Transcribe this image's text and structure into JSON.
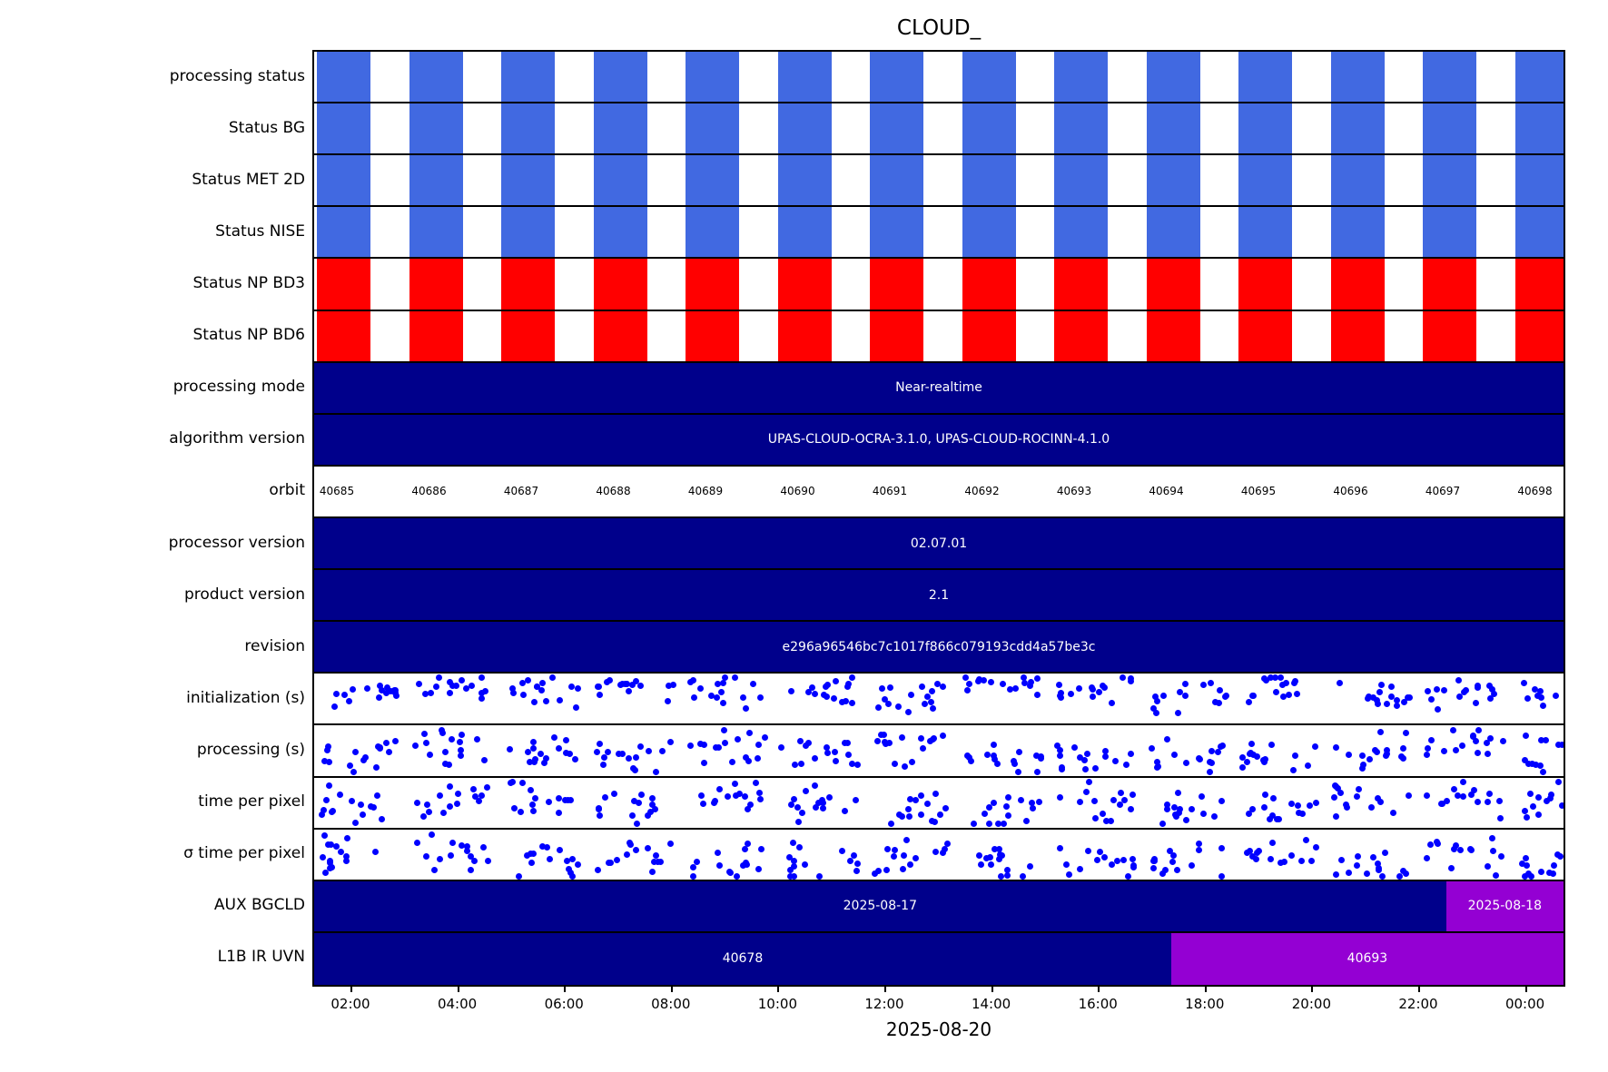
{
  "chart_data": {
    "type": "status-timeline",
    "title": "CLOUD_",
    "xlabel": "2025-08-20",
    "x_ticks": [
      "02:00",
      "04:00",
      "06:00",
      "08:00",
      "10:00",
      "12:00",
      "14:00",
      "16:00",
      "18:00",
      "20:00",
      "22:00",
      "00:00"
    ],
    "legend_position": "none",
    "grid": false,
    "colors": {
      "status_blue": "#4169E1",
      "status_red": "#FF0000",
      "navy": "#00008B",
      "purple": "#9400D3",
      "dot_blue": "#0000FF",
      "text_on_dark": "#FFFFFF",
      "text": "#000000"
    },
    "n_orbits": 14,
    "rows": [
      {
        "label": "processing status",
        "type": "bars",
        "color": "#4169E1",
        "n_bars": 14
      },
      {
        "label": "Status BG",
        "type": "bars",
        "color": "#4169E1",
        "n_bars": 14
      },
      {
        "label": "Status MET 2D",
        "type": "bars",
        "color": "#4169E1",
        "n_bars": 14
      },
      {
        "label": "Status NISE",
        "type": "bars",
        "color": "#4169E1",
        "n_bars": 14
      },
      {
        "label": "Status NP BD3",
        "type": "bars",
        "color": "#FF0000",
        "n_bars": 14
      },
      {
        "label": "Status NP BD6",
        "type": "bars",
        "color": "#FF0000",
        "n_bars": 14
      },
      {
        "label": "processing mode",
        "type": "text",
        "bg": "#00008B",
        "value": "Near-realtime"
      },
      {
        "label": "algorithm version",
        "type": "text",
        "bg": "#00008B",
        "value": "UPAS-CLOUD-OCRA-3.1.0, UPAS-CLOUD-ROCINN-4.1.0"
      },
      {
        "label": "orbit",
        "type": "orbits",
        "values": [
          "40685",
          "40686",
          "40687",
          "40688",
          "40689",
          "40690",
          "40691",
          "40692",
          "40693",
          "40694",
          "40695",
          "40696",
          "40697",
          "40698"
        ]
      },
      {
        "label": "processor version",
        "type": "text",
        "bg": "#00008B",
        "value": "02.07.01"
      },
      {
        "label": "product version",
        "type": "text",
        "bg": "#00008B",
        "value": "2.1"
      },
      {
        "label": "revision",
        "type": "text",
        "bg": "#00008B",
        "value": "e296a96546bc7c1017f866c079193cdd4a57be3c"
      },
      {
        "label": "initialization (s)",
        "type": "scatter",
        "seed": 7,
        "y_band": [
          0.1,
          0.62
        ],
        "dots_per_orbit": 16
      },
      {
        "label": "processing (s)",
        "type": "scatter",
        "seed": 13,
        "y_band": [
          0.15,
          0.85
        ],
        "dots_per_orbit": 16
      },
      {
        "label": "time per pixel",
        "type": "scatter",
        "seed": 29,
        "y_band": [
          0.18,
          0.88
        ],
        "dots_per_orbit": 15
      },
      {
        "label": "σ time per pixel",
        "type": "scatter",
        "seed": 41,
        "y_band": [
          0.2,
          0.9
        ],
        "dots_per_orbit": 15
      },
      {
        "label": "AUX BGCLD",
        "type": "segments",
        "segments": [
          {
            "value": "2025-08-17",
            "color": "#00008B",
            "frac": 0.906
          },
          {
            "value": "2025-08-18",
            "color": "#9400D3",
            "frac": 0.094
          }
        ]
      },
      {
        "label": "L1B IR UVN",
        "type": "segments",
        "segments": [
          {
            "value": "40678",
            "color": "#00008B",
            "frac": 0.686
          },
          {
            "value": "40693",
            "color": "#9400D3",
            "frac": 0.314
          }
        ]
      }
    ]
  }
}
